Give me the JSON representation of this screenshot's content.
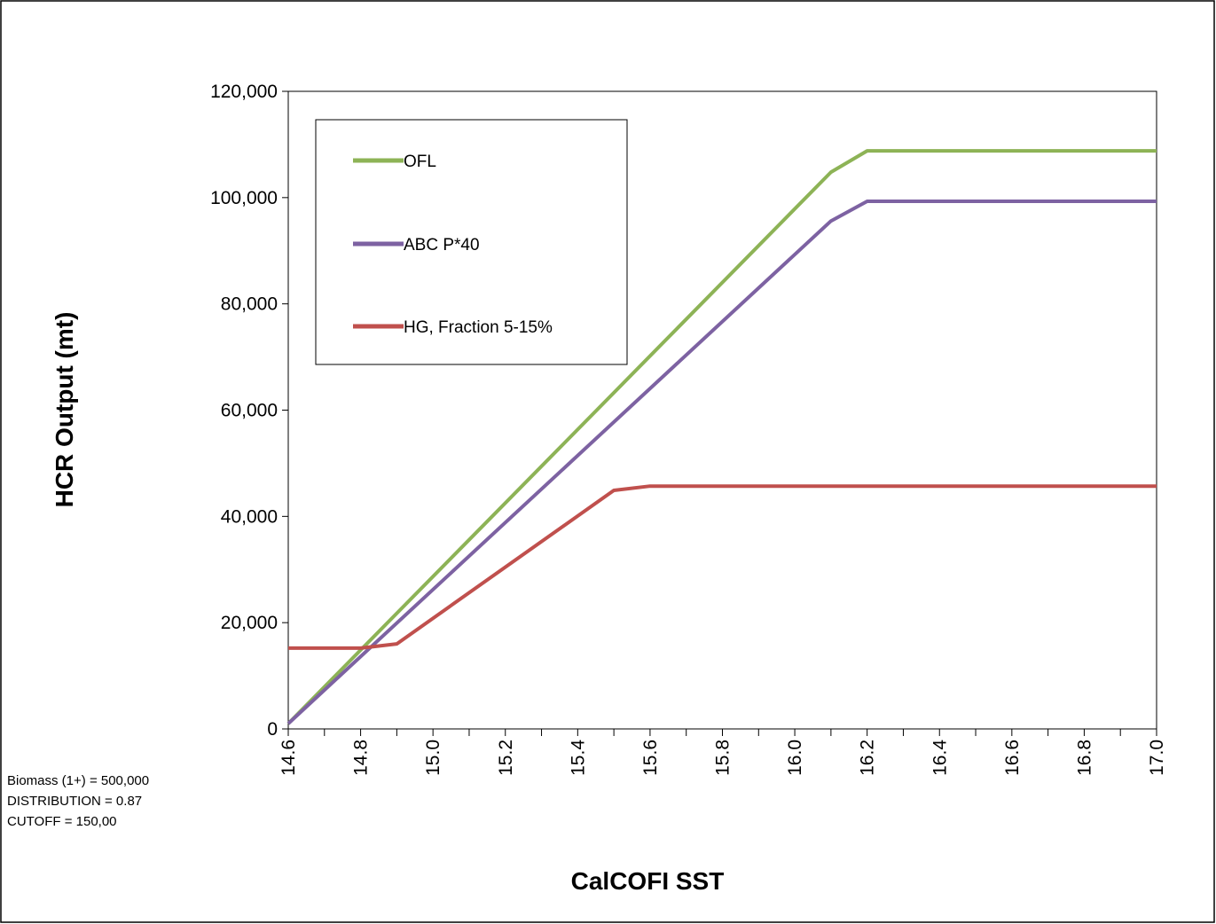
{
  "chart_data": {
    "type": "line",
    "title": "",
    "xlabel": "CalCOFI SST",
    "ylabel": "HCR Output (mt)",
    "xlim": [
      14.6,
      17.0
    ],
    "ylim": [
      0,
      120000
    ],
    "x_ticks": [
      "14.6",
      "14.8",
      "15.0",
      "15.2",
      "15.4",
      "15.6",
      "15.8",
      "16.0",
      "16.2",
      "16.4",
      "16.6",
      "16.8",
      "17.0"
    ],
    "y_ticks": [
      "0",
      "20,000",
      "40,000",
      "60,000",
      "80,000",
      "100,000",
      "120,000"
    ],
    "y_tick_values": [
      0,
      20000,
      40000,
      60000,
      80000,
      100000,
      120000
    ],
    "grid": false,
    "legend_position": "top-left",
    "series": [
      {
        "name": "OFL",
        "color": "#8db356",
        "points": [
          [
            14.6,
            1000
          ],
          [
            16.1,
            104800
          ],
          [
            16.2,
            108800
          ],
          [
            17.0,
            108800
          ]
        ]
      },
      {
        "name": "ABC P*40",
        "color": "#7d62a2",
        "points": [
          [
            14.6,
            1000
          ],
          [
            16.1,
            95600
          ],
          [
            16.2,
            99300
          ],
          [
            17.0,
            99300
          ]
        ]
      },
      {
        "name": "HG, Fraction 5-15%",
        "color": "#c0504d",
        "points": [
          [
            14.6,
            15200
          ],
          [
            14.8,
            15200
          ],
          [
            14.9,
            16000
          ],
          [
            15.5,
            44900
          ],
          [
            15.6,
            45700
          ],
          [
            17.0,
            45700
          ]
        ]
      }
    ],
    "annotations": [
      "Biomass (1+) = 500,000",
      "DISTRIBUTION = 0.87",
      "CUTOFF = 150,00"
    ]
  }
}
